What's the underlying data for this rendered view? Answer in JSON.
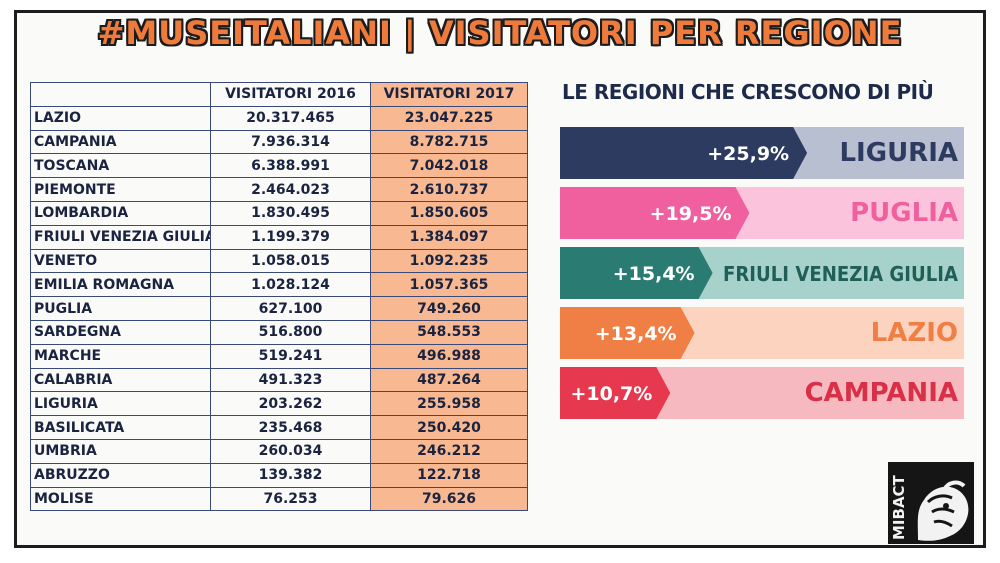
{
  "title": "#MUSEITALIANI | VISITATORI PER REGIONE",
  "subtitle": "LE REGIONI CHE CRESCONO DI PIÙ",
  "logo_text": "MIBACT",
  "colors": {
    "title_fill": "#ee7a3c",
    "table_2017_bg": "#f8b992",
    "liguria_dark": "#2e3b61",
    "liguria_light": "#b8bfd0",
    "puglia_dark": "#f0609e",
    "puglia_light": "#fbc4dc",
    "friuli_dark": "#2a7c72",
    "friuli_light": "#a6d2cb",
    "lazio_dark": "#ef7f45",
    "lazio_light": "#fbd3bf",
    "campania_dark": "#e6394f",
    "campania_light": "#f6b9bf"
  },
  "chart_data": [
    {
      "type": "table",
      "columns": [
        "",
        "VISITATORI 2016",
        "VISITATORI 2017"
      ],
      "rows": [
        [
          "LAZIO",
          "20.317.465",
          "23.047.225"
        ],
        [
          "CAMPANIA",
          "7.936.314",
          "8.782.715"
        ],
        [
          "TOSCANA",
          "6.388.991",
          "7.042.018"
        ],
        [
          "PIEMONTE",
          "2.464.023",
          "2.610.737"
        ],
        [
          "LOMBARDIA",
          "1.830.495",
          "1.850.605"
        ],
        [
          "FRIULI VENEZIA GIULIA",
          "1.199.379",
          "1.384.097"
        ],
        [
          "VENETO",
          "1.058.015",
          "1.092.235"
        ],
        [
          "EMILIA ROMAGNA",
          "1.028.124",
          "1.057.365"
        ],
        [
          "PUGLIA",
          "627.100",
          "749.260"
        ],
        [
          "SARDEGNA",
          "516.800",
          "548.553"
        ],
        [
          "MARCHE",
          "519.241",
          "496.988"
        ],
        [
          "CALABRIA",
          "491.323",
          "487.264"
        ],
        [
          "LIGURIA",
          "203.262",
          "255.958"
        ],
        [
          "BASILICATA",
          "235.468",
          "250.420"
        ],
        [
          "UMBRIA",
          "260.034",
          "246.212"
        ],
        [
          "ABRUZZO",
          "139.382",
          "122.718"
        ],
        [
          "MOLISE",
          "76.253",
          "79.626"
        ]
      ]
    },
    {
      "type": "bar",
      "orientation": "horizontal",
      "title": "LE REGIONI CHE CRESCONO DI PIÙ",
      "categories": [
        "LIGURIA",
        "PUGLIA",
        "FRIULI VENEZIA GIULIA",
        "LAZIO",
        "CAMPANIA"
      ],
      "values": [
        25.9,
        19.5,
        15.4,
        13.4,
        10.7
      ],
      "value_labels": [
        "+25,9%",
        "+19,5%",
        "+15,4%",
        "+13,4%",
        "+10,7%"
      ],
      "dark_colors": [
        "#2e3b61",
        "#f0609e",
        "#2a7c72",
        "#ef7f45",
        "#e6394f"
      ],
      "light_colors": [
        "#b8bfd0",
        "#fbc4dc",
        "#a6d2cb",
        "#fbd3bf",
        "#f6b9bf"
      ],
      "label_colors": [
        "#2e3b61",
        "#f0609e",
        "#1f5f57",
        "#ef7f45",
        "#d92f47"
      ],
      "xlim": [
        0,
        30
      ]
    }
  ]
}
